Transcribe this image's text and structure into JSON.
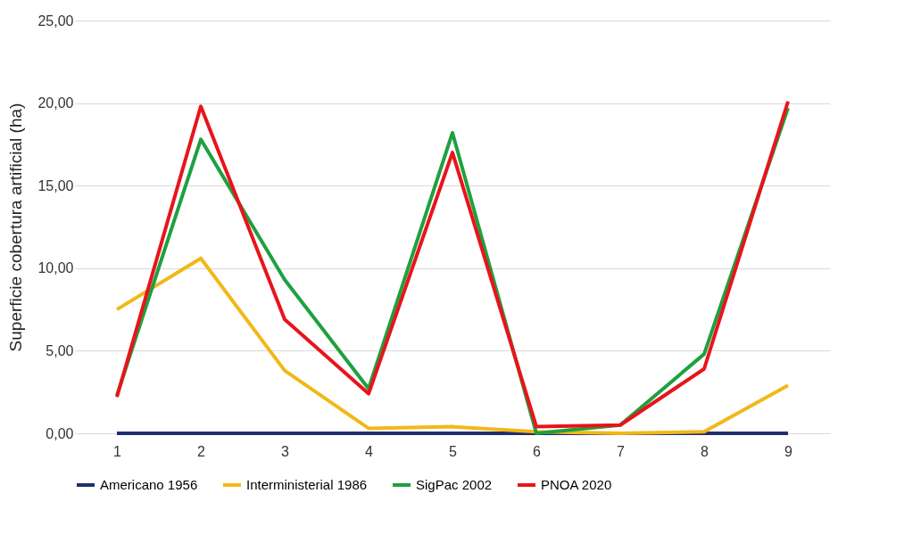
{
  "chart_data": {
    "type": "line",
    "ylabel": "Superficie cobertura artificial (ha)",
    "categories": [
      "1",
      "2",
      "3",
      "4",
      "5",
      "6",
      "7",
      "8",
      "9"
    ],
    "series": [
      {
        "name": "Americano 1956",
        "color": "#1f2f6e",
        "values": [
          0,
          0,
          0,
          0,
          0,
          0,
          0,
          0,
          0
        ]
      },
      {
        "name": "Interministerial 1986",
        "color": "#f2b818",
        "values": [
          7.5,
          10.6,
          3.8,
          0.3,
          0.4,
          0.1,
          0.0,
          0.1,
          2.9
        ]
      },
      {
        "name": "SigPac 2002",
        "color": "#1fa040",
        "values": [
          2.3,
          17.8,
          9.3,
          2.7,
          18.2,
          0.0,
          0.5,
          4.8,
          19.7
        ]
      },
      {
        "name": "PNOA 2020",
        "color": "#e8141c",
        "values": [
          2.2,
          19.8,
          6.9,
          2.4,
          17.0,
          0.4,
          0.5,
          3.9,
          20.1
        ]
      }
    ],
    "ylim": [
      0,
      25
    ],
    "yticks": [
      {
        "value": 0,
        "label": "0,00"
      },
      {
        "value": 5,
        "label": "5,00"
      },
      {
        "value": 10,
        "label": "10,00"
      },
      {
        "value": 15,
        "label": "15,00"
      },
      {
        "value": 20,
        "label": "20,00"
      },
      {
        "value": 25,
        "label": "25,00"
      }
    ],
    "grid": "y",
    "legend": "bottom",
    "marker": "none",
    "line_style": "solid"
  }
}
